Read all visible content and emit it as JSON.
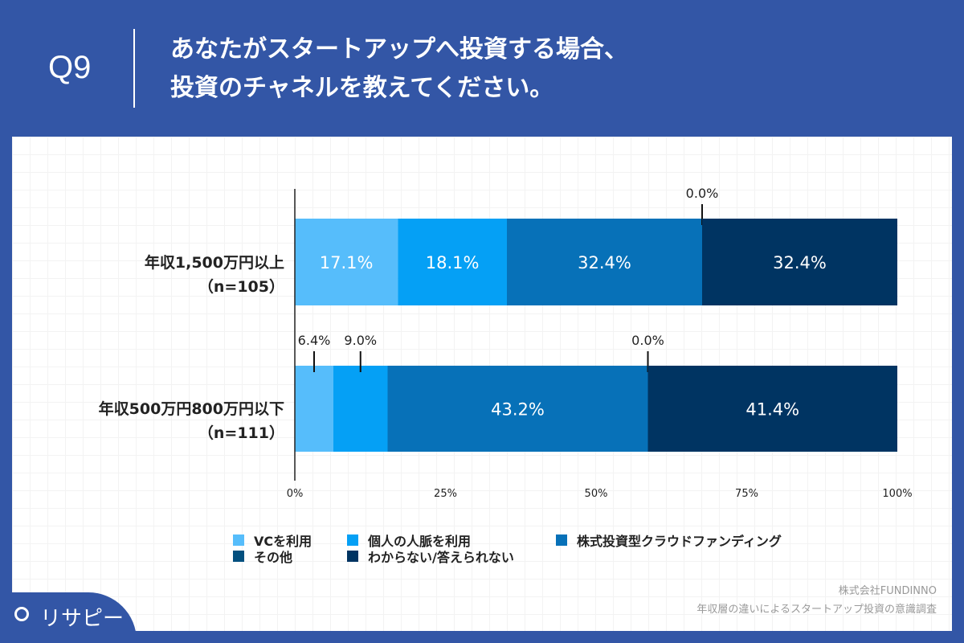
{
  "header": {
    "q": "Q9",
    "title_line1": "あなたがスタートアップへ投資する場合、",
    "title_line2": "投資のチャネルを教えてください。"
  },
  "chart_data": {
    "type": "bar",
    "orientation": "horizontal-stacked",
    "categories": [
      {
        "label": "年収1,500万円以上",
        "n": "（n=105）"
      },
      {
        "label": "年収500万円800万円以下",
        "n": "（n=111）"
      }
    ],
    "series": [
      {
        "name": "VCを利用",
        "color": "#56bdfb",
        "values": [
          17.1,
          6.4
        ],
        "labels": [
          "17.1%",
          "6.4%"
        ]
      },
      {
        "name": "個人の人脈を利用",
        "color": "#05a0f5",
        "values": [
          18.1,
          9.0
        ],
        "labels": [
          "18.1%",
          "9.0%"
        ]
      },
      {
        "name": "株式投資型クラウドファンディング",
        "color": "#0771b8",
        "values": [
          32.4,
          43.2
        ],
        "labels": [
          "32.4%",
          "43.2%"
        ]
      },
      {
        "name": "その他",
        "color": "#03507f",
        "values": [
          0.0,
          0.0
        ],
        "labels": [
          "0.0%",
          "0.0%"
        ]
      },
      {
        "name": "わからない/答えられない",
        "color": "#003462",
        "values": [
          32.4,
          41.4
        ],
        "labels": [
          "32.4%",
          "41.4%"
        ]
      }
    ],
    "xlim": [
      0,
      100
    ],
    "xticks": [
      "0%",
      "25%",
      "50%",
      "75%",
      "100%"
    ],
    "legend": "bottom"
  },
  "footer": {
    "source1": "株式会社FUNDINNO",
    "source2": "年収層の違いによるスタートアップ投資の意識調査",
    "logo": "リサピー"
  }
}
